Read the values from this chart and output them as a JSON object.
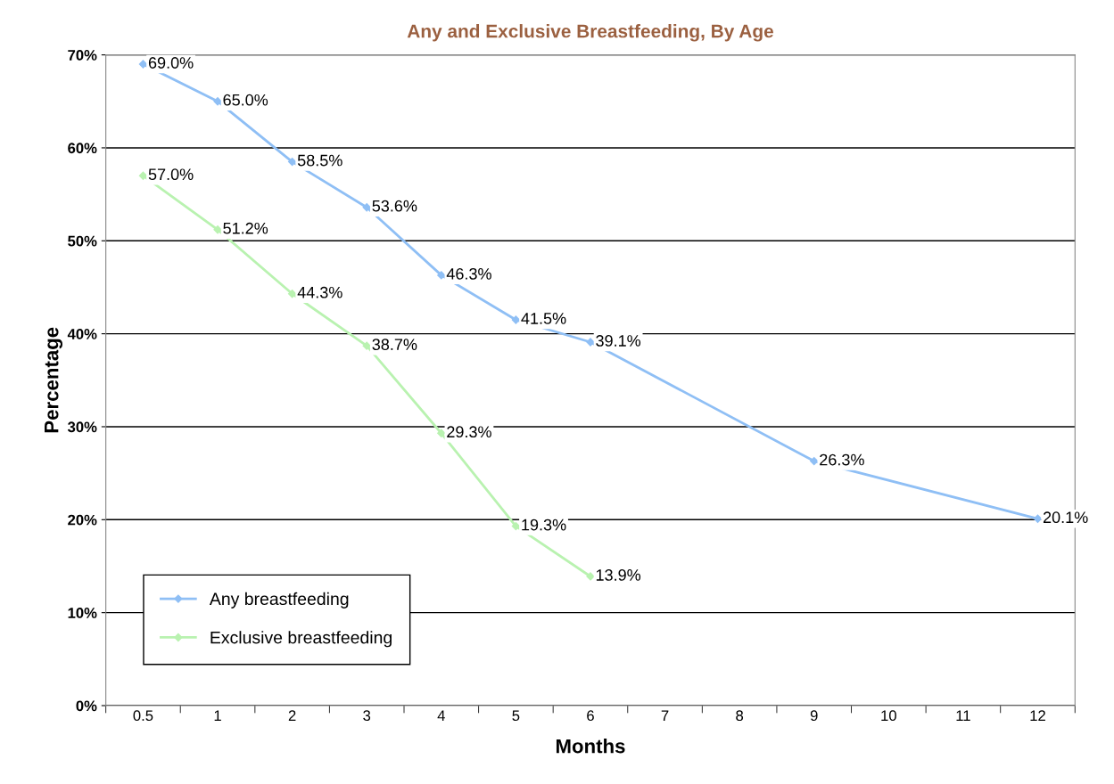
{
  "chart_data": {
    "type": "line",
    "title": "Any and Exclusive Breastfeeding, By Age",
    "xlabel": "Months",
    "ylabel": "Percentage",
    "categories": [
      "0.5",
      "1",
      "2",
      "3",
      "4",
      "5",
      "6",
      "7",
      "8",
      "9",
      "10",
      "11",
      "12"
    ],
    "series": [
      {
        "name": "Any breastfeeding",
        "color": "#8fbff5",
        "values": [
          69.0,
          65.0,
          58.5,
          53.6,
          46.3,
          41.5,
          39.1,
          null,
          null,
          26.3,
          null,
          null,
          20.1
        ],
        "value_labels": [
          "69.0%",
          "65.0%",
          "58.5%",
          "53.6%",
          "46.3%",
          "41.5%",
          "39.1%",
          null,
          null,
          "26.3%",
          null,
          null,
          "20.1%"
        ]
      },
      {
        "name": "Exclusive breastfeeding",
        "color": "#b9f2b0",
        "values": [
          57.0,
          51.2,
          44.3,
          38.7,
          29.3,
          19.3,
          13.9,
          null,
          null,
          null,
          null,
          null,
          null
        ],
        "value_labels": [
          "57.0%",
          "51.2%",
          "44.3%",
          "38.7%",
          "29.3%",
          "19.3%",
          "13.9%",
          null,
          null,
          null,
          null,
          null,
          null
        ]
      }
    ],
    "ylim": [
      0,
      70
    ],
    "yticks": [
      {
        "value": 0,
        "label": "0%"
      },
      {
        "value": 10,
        "label": "10%"
      },
      {
        "value": 20,
        "label": "20%"
      },
      {
        "value": 30,
        "label": "30%"
      },
      {
        "value": 40,
        "label": "40%"
      },
      {
        "value": 50,
        "label": "50%"
      },
      {
        "value": 60,
        "label": "60%"
      },
      {
        "value": 70,
        "label": "70%"
      }
    ],
    "grid": "y",
    "legend": "bottom left",
    "marker": "diamond",
    "line_style": "solid"
  }
}
